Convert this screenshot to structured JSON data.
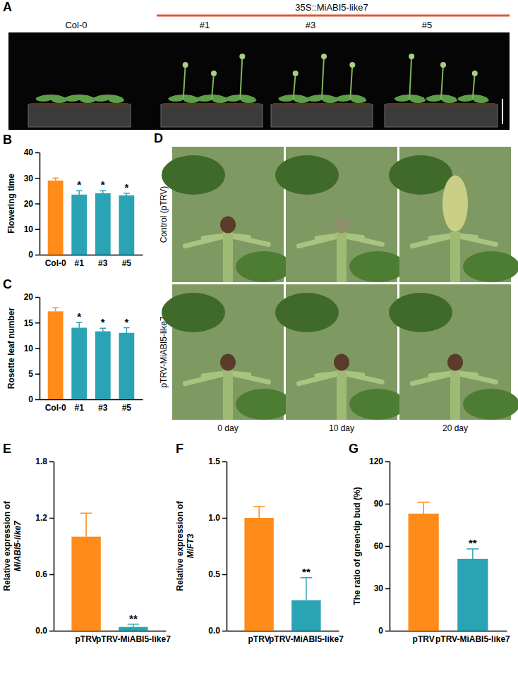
{
  "chart_data": [
    {
      "type": "bar",
      "panel_label": "B",
      "y_label": [
        "Flowering time"
      ],
      "categories": [
        "Col-0",
        "#1",
        "#3",
        "#5"
      ],
      "values": [
        29,
        23.5,
        24,
        23.2
      ],
      "errors": [
        1,
        1.5,
        1,
        0.8
      ],
      "significance": [
        null,
        "*",
        "*",
        "*"
      ],
      "colors": [
        "#FF8C1A",
        "#2AA3B5",
        "#2AA3B5",
        "#2AA3B5"
      ],
      "ylim": [
        0,
        40
      ],
      "yticks": [
        0,
        10,
        20,
        30,
        40
      ],
      "grid": false
    },
    {
      "type": "bar",
      "panel_label": "C",
      "y_label": [
        "Rosette leaf number"
      ],
      "categories": [
        "Col-0",
        "#1",
        "#3",
        "#5"
      ],
      "values": [
        17.2,
        14,
        13.3,
        13
      ],
      "errors": [
        0.7,
        1,
        0.6,
        1
      ],
      "significance": [
        null,
        "*",
        "*",
        "*"
      ],
      "colors": [
        "#FF8C1A",
        "#2AA3B5",
        "#2AA3B5",
        "#2AA3B5"
      ],
      "ylim": [
        0,
        20
      ],
      "yticks": [
        0,
        5,
        10,
        15,
        20
      ],
      "grid": false
    },
    {
      "type": "bar",
      "panel_label": "E",
      "y_label": [
        "Relative expression of",
        "MiABI5-like7"
      ],
      "categories": [
        "pTRV",
        "pTRV-MiABI5-like7"
      ],
      "values": [
        1.0,
        0.04
      ],
      "errors": [
        0.25,
        0.03
      ],
      "significance": [
        null,
        "**"
      ],
      "colors": [
        "#FF8C1A",
        "#2AA3B5"
      ],
      "ylim": [
        0,
        1.8
      ],
      "yticks": [
        {
          "value": 0,
          "label": "0.0"
        },
        0.6,
        1.2,
        1.8
      ],
      "grid": false
    },
    {
      "type": "bar",
      "panel_label": "F",
      "y_label": [
        "Relative expression of",
        "MiFT3"
      ],
      "categories": [
        "pTRV",
        "pTRV-MiABI5-like7"
      ],
      "values": [
        1.0,
        0.27
      ],
      "errors": [
        0.1,
        0.2
      ],
      "significance": [
        null,
        "**"
      ],
      "colors": [
        "#FF8C1A",
        "#2AA3B5"
      ],
      "ylim": [
        0,
        1.5
      ],
      "yticks": [
        {
          "value": 0,
          "label": "0.0"
        },
        0.5,
        {
          "value": 1,
          "label": "1.0"
        },
        1.5
      ],
      "grid": false
    },
    {
      "type": "bar",
      "panel_label": "G",
      "y_label": [
        "The ratio of green-tip bud (%)"
      ],
      "categories": [
        "pTRV",
        "pTRV-MiABI5-like7"
      ],
      "values": [
        83,
        51
      ],
      "errors": [
        8,
        7
      ],
      "significance": [
        null,
        "**"
      ],
      "colors": [
        "#FF8C1A",
        "#2AA3B5"
      ],
      "ylim": [
        0,
        120
      ],
      "yticks": [
        0,
        30,
        60,
        90,
        120
      ],
      "grid": false
    }
  ],
  "photo_panels": [
    {
      "panel_label": "A",
      "header": "35S::MiABI5-like7",
      "labels": [
        "Col-0",
        "#1",
        "#3",
        "#5"
      ]
    },
    {
      "panel_label": "D",
      "row_labels": [
        "Control (pTRV)",
        "pTRV-MiABI5-like7"
      ],
      "column_labels": [
        "0 day",
        "10 day",
        "20 day"
      ]
    }
  ]
}
